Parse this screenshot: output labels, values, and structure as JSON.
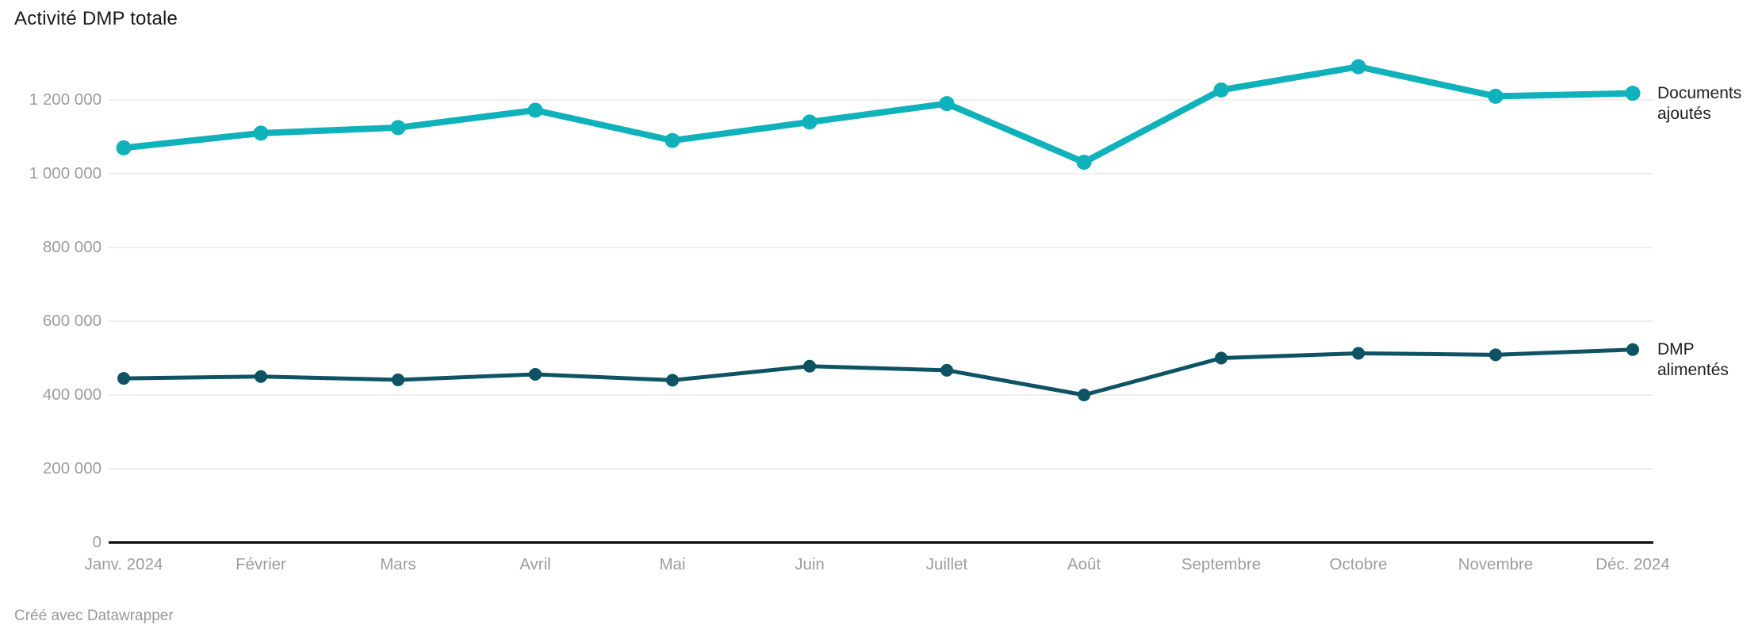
{
  "page": {
    "footer_credit": "Créé avec Datawrapper"
  },
  "chart_data": {
    "type": "line",
    "title": "Activité DMP totale",
    "categories": [
      "Janv. 2024",
      "Février",
      "Mars",
      "Avril",
      "Mai",
      "Juin",
      "Juillet",
      "Août",
      "Septembre",
      "Octobre",
      "Novembre",
      "Déc. 2024"
    ],
    "series": [
      {
        "name": "Documents ajoutés",
        "legend_lines": [
          "Documents",
          "ajoutés"
        ],
        "color": "#0fb1bb",
        "values": [
          1070000,
          1110000,
          1125000,
          1172000,
          1090000,
          1140000,
          1190000,
          1031000,
          1227000,
          1290000,
          1210000,
          1218000
        ]
      },
      {
        "name": "DMP alimentés",
        "legend_lines": [
          "DMP",
          "alimentés"
        ],
        "color": "#0d5363",
        "values": [
          445000,
          450000,
          441000,
          456000,
          440000,
          478000,
          467000,
          400000,
          500000,
          513000,
          509000,
          523000
        ]
      }
    ],
    "y_axis": {
      "min": 0,
      "max": 1300000,
      "ticks": [
        {
          "value": 0,
          "label": "0"
        },
        {
          "value": 200000,
          "label": "200 000"
        },
        {
          "value": 400000,
          "label": "400 000"
        },
        {
          "value": 600000,
          "label": "600 000"
        },
        {
          "value": 800000,
          "label": "800 000"
        },
        {
          "value": 1000000,
          "label": "1 000 000"
        },
        {
          "value": 1200000,
          "label": "1 200 000"
        }
      ]
    },
    "layout": {
      "grid": true,
      "legend_position": "right-of-line-end",
      "x_axis_baseline": true
    },
    "colors": {
      "gridline": "#e8e8e8",
      "axis_baseline": "#161616",
      "tick_label": "#9d9d9d",
      "title_text": "#1a1a1a",
      "legend_text": "#1f1f1f",
      "footer_text": "#999999"
    }
  }
}
